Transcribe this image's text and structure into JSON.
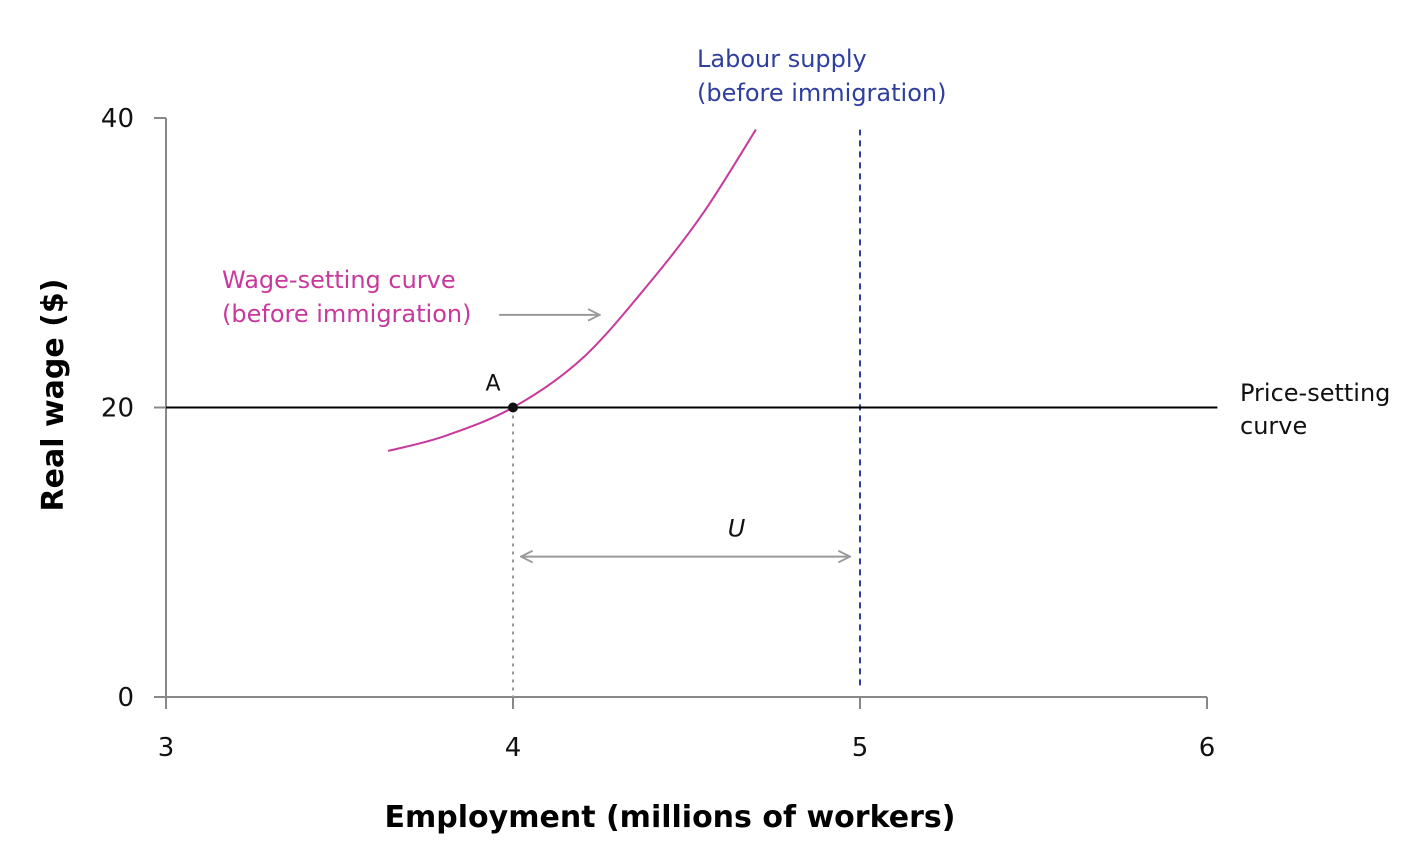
{
  "chart_data": {
    "type": "line",
    "xlabel": "Employment (millions of workers)",
    "ylabel": "Real wage ($)",
    "xlim": [
      3,
      6
    ],
    "ylim": [
      0,
      40
    ],
    "x_ticks": [
      3,
      4,
      5,
      6
    ],
    "x_tick_labels": [
      "3",
      "4",
      "5",
      "6"
    ],
    "y_ticks": [
      0,
      20,
      40
    ],
    "y_tick_labels": [
      "0",
      "20",
      "40"
    ],
    "grid": false,
    "colors": {
      "wage_setting": "#c8399e",
      "labour_supply": "#2f3f9e",
      "price_setting": "#000000",
      "guide": "#9a9a9a",
      "axis": "#888888"
    },
    "series": [
      {
        "key": "wage_setting",
        "x": [
          3.64,
          3.8,
          4.0,
          4.2,
          4.4,
          4.55,
          4.7
        ],
        "y": [
          17.0,
          18.0,
          20.0,
          23.4,
          28.8,
          33.5,
          39.2
        ]
      },
      {
        "key": "price_setting",
        "x": [
          3.0,
          6.03
        ],
        "y": [
          20,
          20
        ]
      },
      {
        "key": "labour_supply",
        "x": [
          5.0,
          5.0
        ],
        "y": [
          0.8,
          39.2
        ]
      }
    ],
    "annotations": {
      "wage_setting_label": [
        "Wage-setting curve",
        "(before immigration)"
      ],
      "labour_supply_label": [
        "Labour supply",
        "(before immigration)"
      ],
      "price_setting_label": [
        "Price-setting",
        "curve"
      ],
      "point_a": {
        "label": "A",
        "x": 4.0,
        "y": 20
      },
      "unemployment": {
        "label": "U",
        "x_from": 4.0,
        "x_to": 5.0,
        "y": 9.7
      },
      "shift_arrow": {
        "x_from": 3.96,
        "x_to": 4.25,
        "y": 26.4
      }
    }
  }
}
